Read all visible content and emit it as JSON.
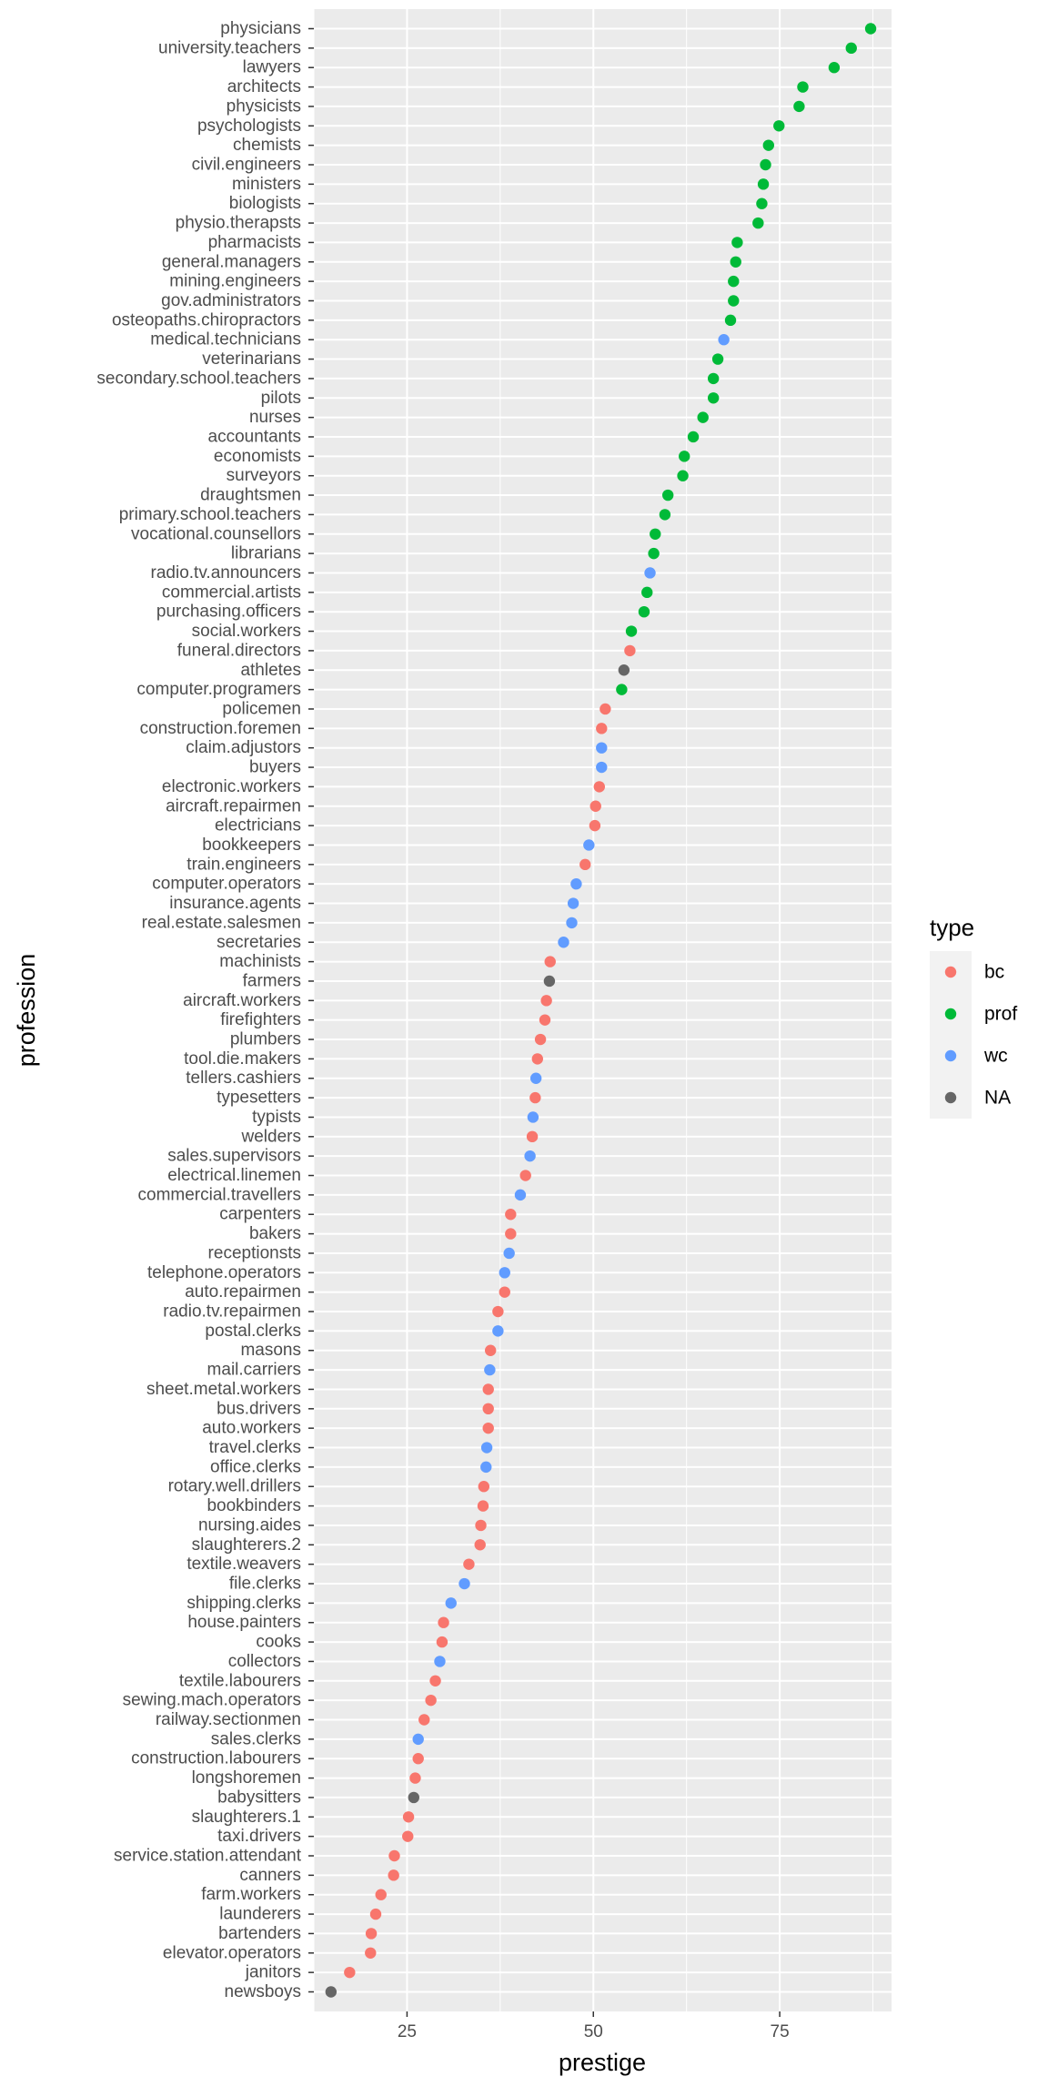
{
  "chart_data": {
    "type": "scatter",
    "xlabel": "prestige",
    "ylabel": "profession",
    "xlim": [
      12.5,
      90
    ],
    "x_ticks": [
      25,
      50,
      75
    ],
    "grid": true,
    "legend": {
      "title": "type",
      "position": "right",
      "entries": [
        {
          "label": "bc",
          "color": "#F8766D"
        },
        {
          "label": "prof",
          "color": "#00BA38"
        },
        {
          "label": "wc",
          "color": "#619CFF"
        },
        {
          "label": "NA",
          "color": "#666666"
        }
      ]
    },
    "points": [
      {
        "profession": "physicians",
        "prestige": 87.2,
        "type": "prof"
      },
      {
        "profession": "university.teachers",
        "prestige": 84.6,
        "type": "prof"
      },
      {
        "profession": "lawyers",
        "prestige": 82.3,
        "type": "prof"
      },
      {
        "profession": "architects",
        "prestige": 78.1,
        "type": "prof"
      },
      {
        "profession": "physicists",
        "prestige": 77.6,
        "type": "prof"
      },
      {
        "profession": "psychologists",
        "prestige": 74.9,
        "type": "prof"
      },
      {
        "profession": "chemists",
        "prestige": 73.5,
        "type": "prof"
      },
      {
        "profession": "civil.engineers",
        "prestige": 73.1,
        "type": "prof"
      },
      {
        "profession": "ministers",
        "prestige": 72.8,
        "type": "prof"
      },
      {
        "profession": "biologists",
        "prestige": 72.6,
        "type": "prof"
      },
      {
        "profession": "physio.therapsts",
        "prestige": 72.1,
        "type": "prof"
      },
      {
        "profession": "pharmacists",
        "prestige": 69.3,
        "type": "prof"
      },
      {
        "profession": "general.managers",
        "prestige": 69.1,
        "type": "prof"
      },
      {
        "profession": "mining.engineers",
        "prestige": 68.8,
        "type": "prof"
      },
      {
        "profession": "gov.administrators",
        "prestige": 68.8,
        "type": "prof"
      },
      {
        "profession": "osteopaths.chiropractors",
        "prestige": 68.4,
        "type": "prof"
      },
      {
        "profession": "medical.technicians",
        "prestige": 67.5,
        "type": "wc"
      },
      {
        "profession": "veterinarians",
        "prestige": 66.7,
        "type": "prof"
      },
      {
        "profession": "secondary.school.teachers",
        "prestige": 66.1,
        "type": "prof"
      },
      {
        "profession": "pilots",
        "prestige": 66.1,
        "type": "prof"
      },
      {
        "profession": "nurses",
        "prestige": 64.7,
        "type": "prof"
      },
      {
        "profession": "accountants",
        "prestige": 63.4,
        "type": "prof"
      },
      {
        "profession": "economists",
        "prestige": 62.2,
        "type": "prof"
      },
      {
        "profession": "surveyors",
        "prestige": 62.0,
        "type": "prof"
      },
      {
        "profession": "draughtsmen",
        "prestige": 60.0,
        "type": "prof"
      },
      {
        "profession": "primary.school.teachers",
        "prestige": 59.6,
        "type": "prof"
      },
      {
        "profession": "vocational.counsellors",
        "prestige": 58.3,
        "type": "prof"
      },
      {
        "profession": "librarians",
        "prestige": 58.1,
        "type": "prof"
      },
      {
        "profession": "radio.tv.announcers",
        "prestige": 57.6,
        "type": "wc"
      },
      {
        "profession": "commercial.artists",
        "prestige": 57.2,
        "type": "prof"
      },
      {
        "profession": "purchasing.officers",
        "prestige": 56.8,
        "type": "prof"
      },
      {
        "profession": "social.workers",
        "prestige": 55.1,
        "type": "prof"
      },
      {
        "profession": "funeral.directors",
        "prestige": 54.9,
        "type": "bc"
      },
      {
        "profession": "athletes",
        "prestige": 54.1,
        "type": "NA"
      },
      {
        "profession": "computer.programers",
        "prestige": 53.8,
        "type": "prof"
      },
      {
        "profession": "policemen",
        "prestige": 51.6,
        "type": "bc"
      },
      {
        "profession": "construction.foremen",
        "prestige": 51.1,
        "type": "bc"
      },
      {
        "profession": "claim.adjustors",
        "prestige": 51.1,
        "type": "wc"
      },
      {
        "profession": "buyers",
        "prestige": 51.1,
        "type": "wc"
      },
      {
        "profession": "electronic.workers",
        "prestige": 50.8,
        "type": "bc"
      },
      {
        "profession": "aircraft.repairmen",
        "prestige": 50.3,
        "type": "bc"
      },
      {
        "profession": "electricians",
        "prestige": 50.2,
        "type": "bc"
      },
      {
        "profession": "bookkeepers",
        "prestige": 49.4,
        "type": "wc"
      },
      {
        "profession": "train.engineers",
        "prestige": 48.9,
        "type": "bc"
      },
      {
        "profession": "computer.operators",
        "prestige": 47.7,
        "type": "wc"
      },
      {
        "profession": "insurance.agents",
        "prestige": 47.3,
        "type": "wc"
      },
      {
        "profession": "real.estate.salesmen",
        "prestige": 47.1,
        "type": "wc"
      },
      {
        "profession": "secretaries",
        "prestige": 46.0,
        "type": "wc"
      },
      {
        "profession": "machinists",
        "prestige": 44.2,
        "type": "bc"
      },
      {
        "profession": "farmers",
        "prestige": 44.1,
        "type": "NA"
      },
      {
        "profession": "aircraft.workers",
        "prestige": 43.7,
        "type": "bc"
      },
      {
        "profession": "firefighters",
        "prestige": 43.5,
        "type": "bc"
      },
      {
        "profession": "plumbers",
        "prestige": 42.9,
        "type": "bc"
      },
      {
        "profession": "tool.die.makers",
        "prestige": 42.5,
        "type": "bc"
      },
      {
        "profession": "tellers.cashiers",
        "prestige": 42.3,
        "type": "wc"
      },
      {
        "profession": "typesetters",
        "prestige": 42.2,
        "type": "bc"
      },
      {
        "profession": "typists",
        "prestige": 41.9,
        "type": "wc"
      },
      {
        "profession": "welders",
        "prestige": 41.8,
        "type": "bc"
      },
      {
        "profession": "sales.supervisors",
        "prestige": 41.5,
        "type": "wc"
      },
      {
        "profession": "electrical.linemen",
        "prestige": 40.9,
        "type": "bc"
      },
      {
        "profession": "commercial.travellers",
        "prestige": 40.2,
        "type": "wc"
      },
      {
        "profession": "carpenters",
        "prestige": 38.9,
        "type": "bc"
      },
      {
        "profession": "bakers",
        "prestige": 38.9,
        "type": "bc"
      },
      {
        "profession": "receptionsts",
        "prestige": 38.7,
        "type": "wc"
      },
      {
        "profession": "telephone.operators",
        "prestige": 38.1,
        "type": "wc"
      },
      {
        "profession": "auto.repairmen",
        "prestige": 38.1,
        "type": "bc"
      },
      {
        "profession": "radio.tv.repairmen",
        "prestige": 37.2,
        "type": "bc"
      },
      {
        "profession": "postal.clerks",
        "prestige": 37.2,
        "type": "wc"
      },
      {
        "profession": "masons",
        "prestige": 36.2,
        "type": "bc"
      },
      {
        "profession": "mail.carriers",
        "prestige": 36.1,
        "type": "wc"
      },
      {
        "profession": "sheet.metal.workers",
        "prestige": 35.9,
        "type": "bc"
      },
      {
        "profession": "bus.drivers",
        "prestige": 35.9,
        "type": "bc"
      },
      {
        "profession": "auto.workers",
        "prestige": 35.9,
        "type": "bc"
      },
      {
        "profession": "travel.clerks",
        "prestige": 35.7,
        "type": "wc"
      },
      {
        "profession": "office.clerks",
        "prestige": 35.6,
        "type": "wc"
      },
      {
        "profession": "rotary.well.drillers",
        "prestige": 35.3,
        "type": "bc"
      },
      {
        "profession": "bookbinders",
        "prestige": 35.2,
        "type": "bc"
      },
      {
        "profession": "nursing.aides",
        "prestige": 34.9,
        "type": "bc"
      },
      {
        "profession": "slaughterers.2",
        "prestige": 34.8,
        "type": "bc"
      },
      {
        "profession": "textile.weavers",
        "prestige": 33.3,
        "type": "bc"
      },
      {
        "profession": "file.clerks",
        "prestige": 32.7,
        "type": "wc"
      },
      {
        "profession": "shipping.clerks",
        "prestige": 30.9,
        "type": "wc"
      },
      {
        "profession": "house.painters",
        "prestige": 29.9,
        "type": "bc"
      },
      {
        "profession": "cooks",
        "prestige": 29.7,
        "type": "bc"
      },
      {
        "profession": "collectors",
        "prestige": 29.4,
        "type": "wc"
      },
      {
        "profession": "textile.labourers",
        "prestige": 28.8,
        "type": "bc"
      },
      {
        "profession": "sewing.mach.operators",
        "prestige": 28.2,
        "type": "bc"
      },
      {
        "profession": "railway.sectionmen",
        "prestige": 27.3,
        "type": "bc"
      },
      {
        "profession": "sales.clerks",
        "prestige": 26.5,
        "type": "wc"
      },
      {
        "profession": "construction.labourers",
        "prestige": 26.5,
        "type": "bc"
      },
      {
        "profession": "longshoremen",
        "prestige": 26.1,
        "type": "bc"
      },
      {
        "profession": "babysitters",
        "prestige": 25.9,
        "type": "NA"
      },
      {
        "profession": "slaughterers.1",
        "prestige": 25.2,
        "type": "bc"
      },
      {
        "profession": "taxi.drivers",
        "prestige": 25.1,
        "type": "bc"
      },
      {
        "profession": "service.station.attendant",
        "prestige": 23.3,
        "type": "bc"
      },
      {
        "profession": "canners",
        "prestige": 23.2,
        "type": "bc"
      },
      {
        "profession": "farm.workers",
        "prestige": 21.5,
        "type": "bc"
      },
      {
        "profession": "launderers",
        "prestige": 20.8,
        "type": "bc"
      },
      {
        "profession": "bartenders",
        "prestige": 20.2,
        "type": "bc"
      },
      {
        "profession": "elevator.operators",
        "prestige": 20.1,
        "type": "bc"
      },
      {
        "profession": "janitors",
        "prestige": 17.3,
        "type": "bc"
      },
      {
        "profession": "newsboys",
        "prestige": 14.8,
        "type": "NA"
      }
    ]
  }
}
